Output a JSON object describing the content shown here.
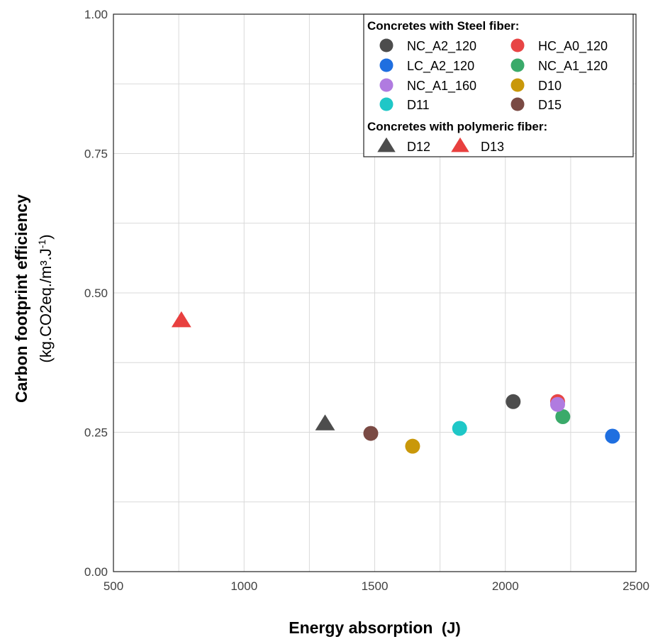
{
  "chart_data": {
    "type": "scatter",
    "xlabel": "Energy absorption",
    "xunit": "(J)",
    "ylabel": "Carbon footprint efficiency",
    "yunit_text": "(kg.CO2eq./m³.J",
    "yunit_sup": "-1",
    "yunit_close": ")",
    "xlim": [
      500,
      2500
    ],
    "ylim": [
      0,
      1
    ],
    "x_ticks": [
      "500",
      "1000",
      "1500",
      "2000",
      "2500"
    ],
    "y_ticks": [
      "0.00",
      "0.25",
      "0.50",
      "0.75",
      "1.00"
    ],
    "grid": true,
    "legend_position": "top-right",
    "legend_groups": [
      {
        "title": "Concretes with Steel fiber:"
      },
      {
        "title": "Concretes with polymeric fiber:"
      }
    ],
    "series": [
      {
        "name": "NC_A2_120",
        "group": 0,
        "marker": "circle",
        "color": "#4d4d4d",
        "x": 2030,
        "y": 0.305
      },
      {
        "name": "HC_A0_120",
        "group": 0,
        "marker": "circle",
        "color": "#e84545",
        "x": 2200,
        "y": 0.305
      },
      {
        "name": "LC_A2_120",
        "group": 0,
        "marker": "circle",
        "color": "#1f6fe0",
        "x": 2410,
        "y": 0.243
      },
      {
        "name": "NC_A1_120",
        "group": 0,
        "marker": "circle",
        "color": "#3aaa6a",
        "x": 2220,
        "y": 0.278
      },
      {
        "name": "NC_A1_160",
        "group": 0,
        "marker": "circle",
        "color": "#b07be0",
        "x": 2200,
        "y": 0.3
      },
      {
        "name": "D10",
        "group": 0,
        "marker": "circle",
        "color": "#c9980a",
        "x": 1645,
        "y": 0.225
      },
      {
        "name": "D11",
        "group": 0,
        "marker": "circle",
        "color": "#1fc7c7",
        "x": 1825,
        "y": 0.257
      },
      {
        "name": "D15",
        "group": 0,
        "marker": "circle",
        "color": "#7a4a44",
        "x": 1485,
        "y": 0.248
      },
      {
        "name": "D12",
        "group": 1,
        "marker": "triangle",
        "color": "#4d4d4d",
        "x": 1310,
        "y": 0.265
      },
      {
        "name": "D13",
        "group": 1,
        "marker": "triangle",
        "color": "#e8403f",
        "x": 760,
        "y": 0.45
      }
    ]
  }
}
